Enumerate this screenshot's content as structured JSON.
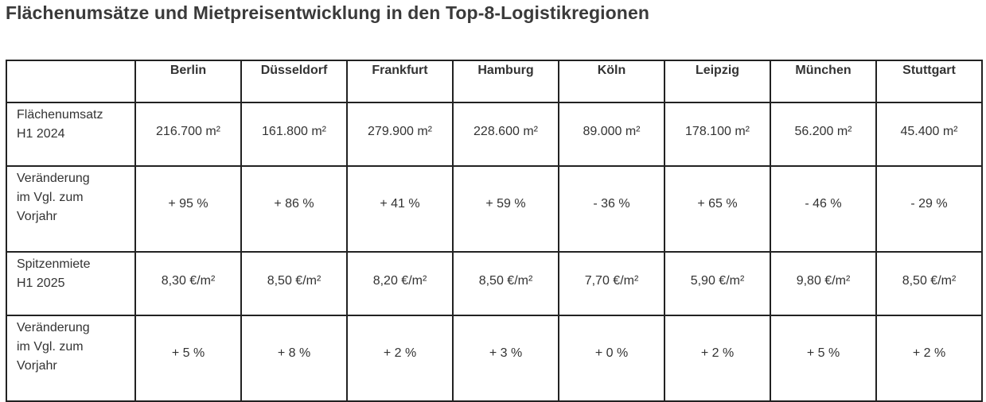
{
  "title": "Flächenumsätze und Mietpreisentwicklung in den Top-8-Logistikregionen",
  "table": {
    "corner": "",
    "columns": [
      "Berlin",
      "Düsseldorf",
      "Frankfurt",
      "Hamburg",
      "Köln",
      "Leipzig",
      "München",
      "Stuttgart"
    ],
    "rows": [
      {
        "label_lines": [
          "Flächenumsatz",
          "H1 2024"
        ],
        "values": [
          "216.700 m²",
          "161.800 m²",
          "279.900 m²",
          "228.600 m²",
          "89.000 m²",
          "178.100 m²",
          "56.200 m²",
          "45.400 m²"
        ]
      },
      {
        "label_lines": [
          "Veränderung",
          "im Vgl. zum",
          "Vorjahr"
        ],
        "values": [
          "+ 95 %",
          "+ 86 %",
          "+ 41 %",
          "+ 59 %",
          "- 36 %",
          "+ 65 %",
          "- 46 %",
          "- 29 %"
        ]
      },
      {
        "label_lines": [
          "Spitzenmiete",
          "H1 2025"
        ],
        "values": [
          "8,30 €/m²",
          "8,50 €/m²",
          "8,20 €/m²",
          "8,50 €/m²",
          "7,70 €/m²",
          "5,90 €/m²",
          "9,80 €/m²",
          "8,50 €/m²"
        ]
      },
      {
        "label_lines": [
          "Veränderung",
          "im Vgl. zum",
          "Vorjahr"
        ],
        "values": [
          "+ 5 %",
          "+ 8 %",
          "+ 2 %",
          "+ 3 %",
          "+ 0 %",
          "+ 2 %",
          "+ 5 %",
          "+ 2 %"
        ]
      }
    ]
  }
}
